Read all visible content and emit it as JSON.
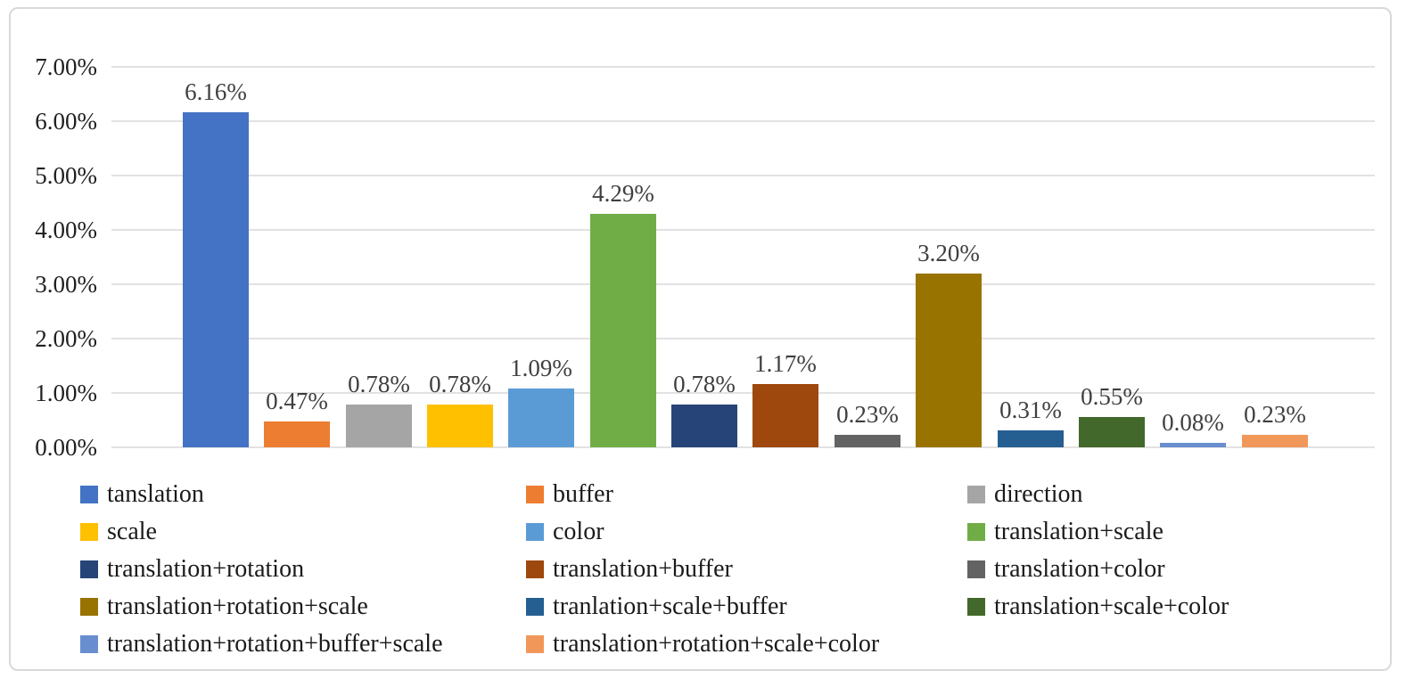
{
  "chart_data": {
    "type": "bar",
    "categories": [
      "tanslation",
      "buffer",
      "direction",
      "scale",
      "color",
      "translation+scale",
      "translation+rotation",
      "translation+buffer",
      "translation+color",
      "translation+rotation+scale",
      "tranlation+scale+buffer",
      "translation+scale+color",
      "translation+rotation+buffer+scale",
      "translation+rotation+scale+color"
    ],
    "values": [
      6.16,
      0.47,
      0.78,
      0.78,
      1.09,
      4.29,
      0.78,
      1.17,
      0.23,
      3.2,
      0.31,
      0.55,
      0.08,
      0.23
    ],
    "value_labels": [
      "6.16%",
      "0.47%",
      "0.78%",
      "0.78%",
      "1.09%",
      "4.29%",
      "0.78%",
      "1.17%",
      "0.23%",
      "3.20%",
      "0.31%",
      "0.55%",
      "0.08%",
      "0.23%"
    ],
    "colors": [
      "#4472C4",
      "#ED7D31",
      "#A5A5A5",
      "#FFC000",
      "#5B9BD5",
      "#70AD47",
      "#264478",
      "#9E480E",
      "#636363",
      "#997300",
      "#255E91",
      "#43682B",
      "#698ED0",
      "#F1975A"
    ],
    "yticks": [
      "0.00%",
      "1.00%",
      "2.00%",
      "3.00%",
      "4.00%",
      "5.00%",
      "6.00%",
      "7.00%"
    ],
    "ylim": [
      0,
      7
    ],
    "grid": true,
    "legend_position": "bottom",
    "legend_columns": 3,
    "title": "",
    "xlabel": "",
    "ylabel": ""
  },
  "style": {
    "gridline_color": "#E2E2E2",
    "border_color": "#D9D9D9",
    "axis_text_color": "#1F1F1F",
    "value_label_color": "#3F3F3F",
    "legend_text_color": "#1A1A1A",
    "background": "#FFFFFF"
  }
}
